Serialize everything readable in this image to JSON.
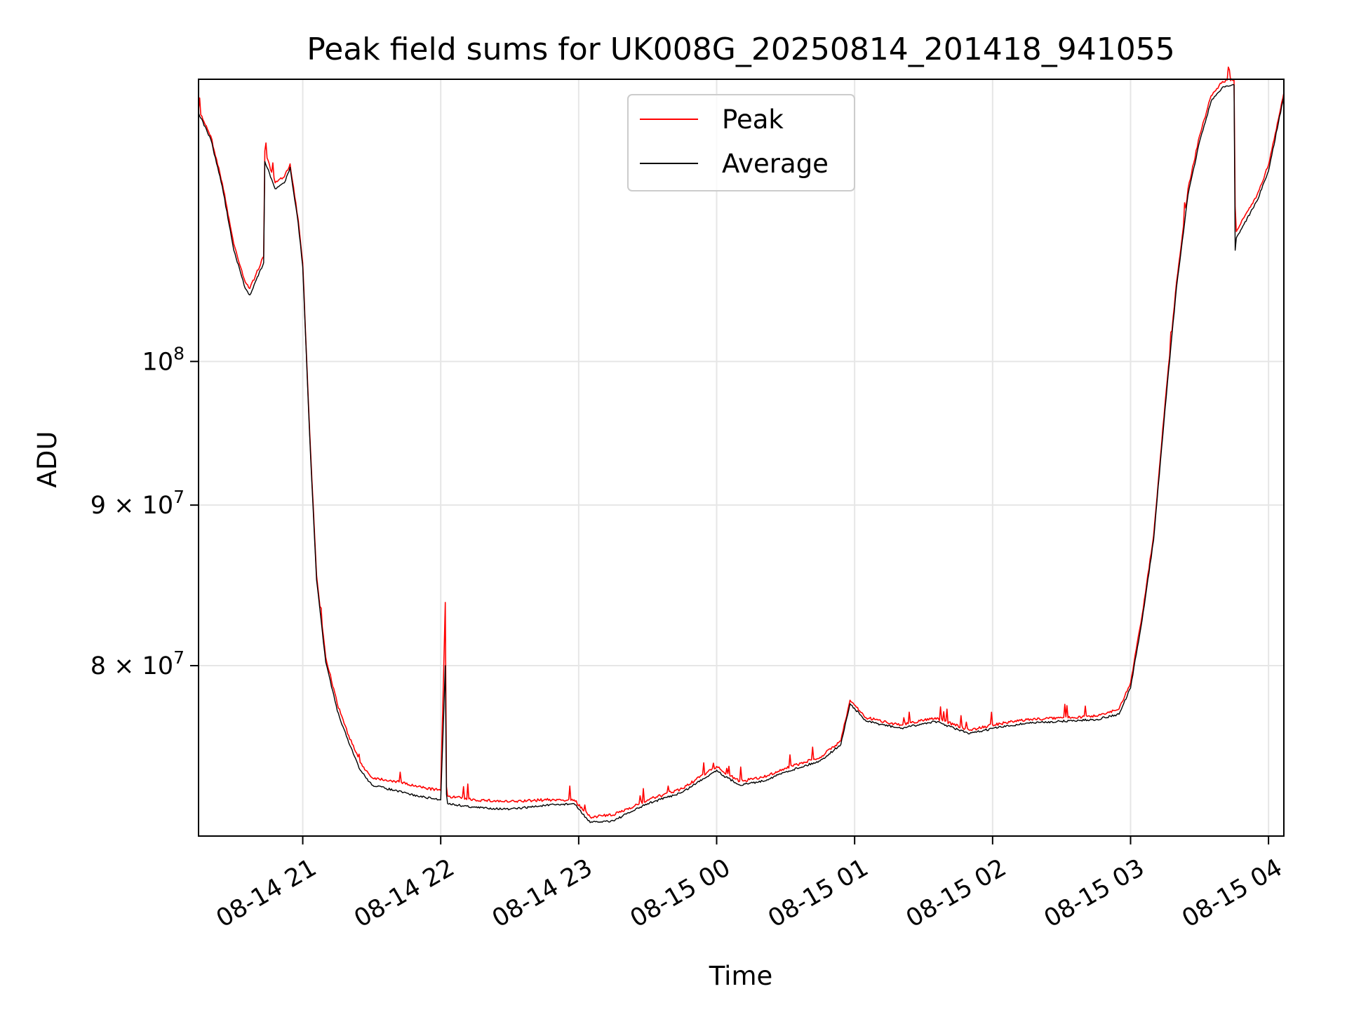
{
  "chart_data": {
    "type": "line",
    "title": "Peak field sums for UK008G_20250814_201418_941055",
    "xlabel": "Time",
    "ylabel": "ADU",
    "y_scale": "log",
    "ylim": [
      70600000,
      123000000
    ],
    "xlim": [
      "2025-08-14 20:14:41",
      "2025-08-15 04:06:40"
    ],
    "x_ticks": [
      "08-14 21",
      "08-14 22",
      "08-14 23",
      "08-15 00",
      "08-15 01",
      "08-15 02",
      "08-15 03",
      "08-15 04"
    ],
    "x_tick_times": [
      "2025-08-14 21:00:00",
      "2025-08-14 22:00:00",
      "2025-08-14 23:00:00",
      "2025-08-15 00:00:00",
      "2025-08-15 01:00:00",
      "2025-08-15 02:00:00",
      "2025-08-15 03:00:00",
      "2025-08-15 04:00:00"
    ],
    "y_ticks": [
      {
        "value": 100000000,
        "label": "10",
        "exp": "8",
        "mult": ""
      },
      {
        "value": 90000000,
        "label": "9 × 10",
        "exp": "7",
        "mult": "9×"
      },
      {
        "value": 80000000,
        "label": "8 × 10",
        "exp": "7",
        "mult": "8×"
      }
    ],
    "grid": true,
    "legend": "top-center",
    "series": [
      {
        "name": "Peak",
        "color": "#ff0000",
        "x": [
          "2025-08-14 20:14:41",
          "2025-08-14 20:20:00",
          "2025-08-14 20:25:00",
          "2025-08-14 20:30:00",
          "2025-08-14 20:35:00",
          "2025-08-14 20:37:00",
          "2025-08-14 20:43:00",
          "2025-08-14 20:43:30",
          "2025-08-14 20:48:00",
          "20:52",
          "2025-08-14 20:54:30",
          "2025-08-14 20:58:00",
          "2025-08-14 21:00:00",
          "2025-08-14 21:03:00",
          "2025-08-14 21:06:00",
          "2025-08-14 21:10:00",
          "2025-08-14 21:15:00",
          "2025-08-14 21:20:00",
          "2025-08-14 21:25:00",
          "2025-08-14 21:30:00",
          "2025-08-14 21:40:00",
          "2025-08-14 21:50:00",
          "2025-08-14 22:00:00",
          "2025-08-14 22:02:00",
          "2025-08-14 22:02:30",
          "2025-08-14 22:03:00",
          "2025-08-14 22:15:00",
          "2025-08-14 22:30:00",
          "2025-08-14 22:45:00",
          "2025-08-14 22:58:00",
          "2025-08-14 23:05:00",
          "2025-08-14 23:15:00",
          "2025-08-14 23:30:00",
          "2025-08-14 23:45:00",
          "2025-08-15 00:00:00",
          "2025-08-15 00:03:00",
          "2025-08-15 00:10:00",
          "2025-08-15 00:20:00",
          "2025-08-15 00:30:00",
          "2025-08-15 00:45:00",
          "2025-08-15 00:54:00",
          "2025-08-15 00:58:00",
          "2025-08-15 01:05:00",
          "2025-08-15 01:20:00",
          "2025-08-15 01:35:00",
          "2025-08-15 01:50:00",
          "2025-08-15 02:00:00",
          "2025-08-15 02:15:00",
          "2025-08-15 02:30:00",
          "2025-08-15 02:45:00",
          "2025-08-15 02:55:00",
          "2025-08-15 03:00:00",
          "2025-08-15 03:05:00",
          "2025-08-15 03:10:00",
          "2025-08-15 03:15:00",
          "2025-08-15 03:20:00",
          "2025-08-15 03:25:00",
          "2025-08-15 03:30:00",
          "2025-08-15 03:35:00",
          "2025-08-15 03:40:00",
          "2025-08-15 03:45:00",
          "2025-08-15 03:45:30",
          "2025-08-15 03:46:00",
          "2025-08-15 03:55:00",
          "2025-08-15 04:00:00",
          "2025-08-15 04:06:40"
        ],
        "y": [
          120300000,
          118000000,
          114000000,
          109000000,
          106000000,
          105500000,
          108000000,
          116700000,
          114000000,
          114500000,
          115600000,
          111000000,
          107500000,
          95000000,
          85500000,
          80500000,
          77800000,
          76000000,
          74500000,
          73700000,
          73500000,
          73200000,
          73000000,
          83800000,
          73200000,
          72700000,
          72500000,
          72400000,
          72500000,
          72500000,
          71600000,
          71700000,
          72500000,
          73100000,
          74300000,
          74000000,
          73500000,
          73700000,
          74200000,
          74800000,
          75700000,
          78000000,
          77000000,
          76600000,
          77000000,
          76300000,
          76600000,
          76900000,
          77000000,
          77100000,
          77500000,
          79000000,
          83000000,
          88000000,
          97000000,
          106000000,
          113500000,
          118000000,
          121500000,
          122800000,
          123000000,
          112000000,
          110000000,
          113000000,
          115500000,
          121800000
        ]
      },
      {
        "name": "Average",
        "color": "#000000",
        "x": [
          "2025-08-14 20:14:41",
          "2025-08-14 20:20:00",
          "2025-08-14 20:25:00",
          "2025-08-14 20:30:00",
          "2025-08-14 20:35:00",
          "2025-08-14 20:37:00",
          "2025-08-14 20:43:00",
          "2025-08-14 20:43:30",
          "2025-08-14 20:48:00",
          "2025-08-14 20:52:00",
          "2025-08-14 20:54:30",
          "2025-08-14 20:58:00",
          "2025-08-14 21:00:00",
          "2025-08-14 21:03:00",
          "2025-08-14 21:06:00",
          "2025-08-14 21:10:00",
          "2025-08-14 21:15:00",
          "2025-08-14 21:20:00",
          "2025-08-14 21:25:00",
          "2025-08-14 21:30:00",
          "2025-08-14 21:40:00",
          "2025-08-14 21:50:00",
          "2025-08-14 22:00:00",
          "2025-08-14 22:02:00",
          "2025-08-14 22:02:30",
          "2025-08-14 22:03:00",
          "2025-08-14 22:15:00",
          "2025-08-14 22:30:00",
          "2025-08-14 22:45:00",
          "2025-08-14 22:58:00",
          "2025-08-14 23:05:00",
          "2025-08-14 23:15:00",
          "2025-08-14 23:30:00",
          "2025-08-14 23:45:00",
          "2025-08-15 00:00:00",
          "2025-08-15 00:03:00",
          "2025-08-15 00:10:00",
          "2025-08-15 00:20:00",
          "2025-08-15 00:30:00",
          "2025-08-15 00:45:00",
          "2025-08-15 00:54:00",
          "2025-08-15 00:58:00",
          "2025-08-15 01:05:00",
          "2025-08-15 01:20:00",
          "2025-08-15 01:35:00",
          "2025-08-15 01:50:00",
          "2025-08-15 02:00:00",
          "2025-08-15 02:15:00",
          "2025-08-15 02:30:00",
          "2025-08-15 02:45:00",
          "2025-08-15 02:55:00",
          "2025-08-15 03:00:00",
          "2025-08-15 03:05:00",
          "2025-08-15 03:10:00",
          "2025-08-15 03:15:00",
          "2025-08-15 03:20:00",
          "2025-08-15 03:25:00",
          "2025-08-15 03:30:00",
          "2025-08-15 03:35:00",
          "2025-08-15 03:40:00",
          "2025-08-15 03:45:00",
          "2025-08-15 03:45:30",
          "2025-08-15 03:46:00",
          "2025-08-15 03:55:00",
          "2025-08-15 04:00:00",
          "2025-08-15 04:06:40"
        ],
        "y": [
          120000000,
          117700000,
          113700000,
          108500000,
          105500000,
          105000000,
          107500000,
          115800000,
          113500000,
          114000000,
          115300000,
          110700000,
          107200000,
          94700000,
          85200000,
          80200000,
          77400000,
          75600000,
          74100000,
          73300000,
          73000000,
          72700000,
          72500000,
          80000000,
          72800000,
          72300000,
          72100000,
          72000000,
          72200000,
          72300000,
          71300000,
          71400000,
          72300000,
          72900000,
          74100000,
          73800000,
          73300000,
          73500000,
          74000000,
          74600000,
          75500000,
          77800000,
          76800000,
          76400000,
          76800000,
          76100000,
          76400000,
          76700000,
          76800000,
          76900000,
          77200000,
          78700000,
          82700000,
          87700000,
          96600000,
          105600000,
          113000000,
          117500000,
          121000000,
          122300000,
          122500000,
          108500000,
          109500000,
          112500000,
          115000000,
          121500000
        ]
      }
    ]
  }
}
